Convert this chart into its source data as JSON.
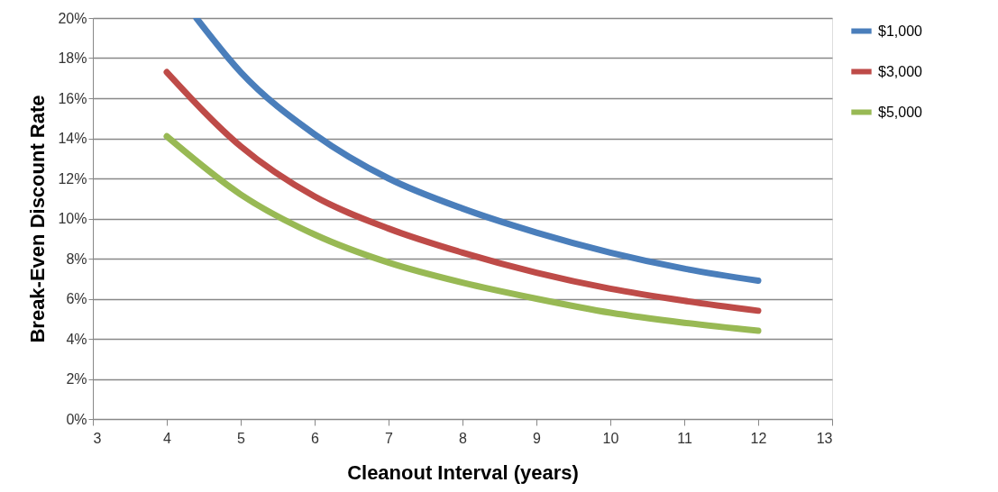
{
  "chart_data": {
    "type": "line",
    "xlabel": "Cleanout Interval (years)",
    "ylabel": "Break-Even Discount Rate",
    "xlim": [
      3,
      13
    ],
    "xticks": [
      3,
      4,
      5,
      6,
      7,
      8,
      9,
      10,
      11,
      12,
      13
    ],
    "ylim": [
      0,
      20
    ],
    "yticks": [
      {
        "value": 0,
        "label": "0%"
      },
      {
        "value": 2,
        "label": "2%"
      },
      {
        "value": 4,
        "label": "4%"
      },
      {
        "value": 6,
        "label": "6%"
      },
      {
        "value": 8,
        "label": "8%"
      },
      {
        "value": 10,
        "label": "10%"
      },
      {
        "value": 12,
        "label": "12%"
      },
      {
        "value": 14,
        "label": "14%"
      },
      {
        "value": 16,
        "label": "16%"
      },
      {
        "value": 18,
        "label": "18%"
      },
      {
        "value": 20,
        "label": "20%"
      }
    ],
    "grid": "y",
    "legend": "right",
    "marker": "none",
    "line_style": "solid",
    "series": [
      {
        "name": "$1,000",
        "color": "#4a7ebb",
        "x": [
          4.4,
          5,
          6,
          7,
          8,
          9,
          10,
          11,
          12
        ],
        "values": [
          20,
          17.3,
          14.2,
          12.0,
          10.5,
          9.3,
          8.3,
          7.5,
          6.9
        ]
      },
      {
        "name": "$3,000",
        "color": "#be4b48",
        "x": [
          4,
          5,
          6,
          7,
          8,
          9,
          10,
          11,
          12
        ],
        "values": [
          17.3,
          13.6,
          11.1,
          9.5,
          8.3,
          7.3,
          6.5,
          5.9,
          5.4
        ]
      },
      {
        "name": "$5,000",
        "color": "#98b954",
        "x": [
          4,
          5,
          6,
          7,
          8,
          9,
          10,
          11,
          12
        ],
        "values": [
          14.1,
          11.2,
          9.2,
          7.8,
          6.8,
          6.0,
          5.3,
          4.8,
          4.4
        ]
      }
    ]
  }
}
